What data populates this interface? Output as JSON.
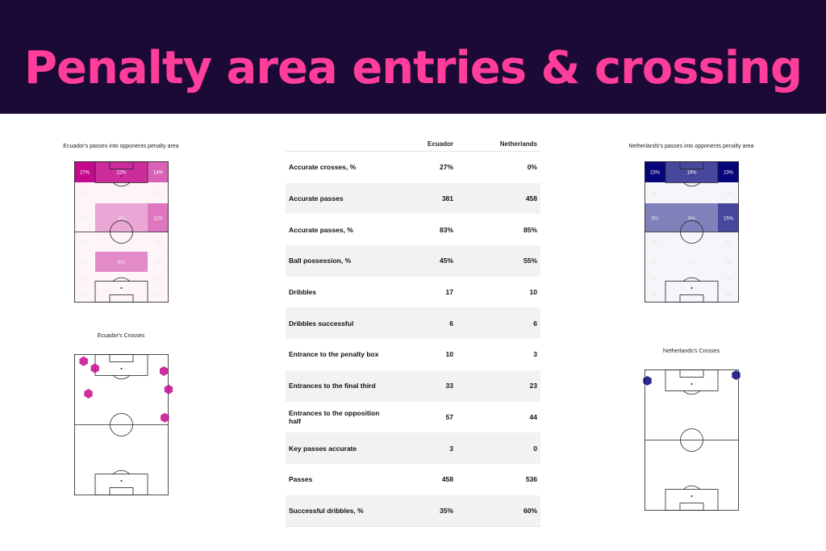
{
  "title": "Penalty area entries & crossing",
  "colors": {
    "banner_bg": "#1b0a35",
    "title": "#ff3d9a",
    "ecuador": "#c40a8c",
    "netherlands": "#06067a"
  },
  "chart_data": [
    {
      "type": "heatmap",
      "title": "Ecuador's passes into opponents penalty area",
      "team": "ecuador",
      "grid": [
        [
          "27%",
          "22%",
          "14%"
        ],
        [
          "0%",
          "",
          "0%"
        ],
        [
          "0%",
          "4%",
          "11%"
        ],
        [
          "0%",
          "",
          "0%"
        ],
        [
          "0%",
          "8%",
          "0%"
        ],
        [
          "0%",
          "",
          "0%"
        ],
        [
          "0%",
          "",
          "0%"
        ]
      ],
      "zones": [
        {
          "label": "27%",
          "value": 27
        },
        {
          "label": "22%",
          "value": 22
        },
        {
          "label": "14%",
          "value": 14
        },
        {
          "label": "4%",
          "value": 4
        },
        {
          "label": "11%",
          "value": 11
        },
        {
          "label": "8%",
          "value": 8
        },
        {
          "label": "0%",
          "value": 0
        }
      ]
    },
    {
      "type": "scatter",
      "title": "Ecuador's Crosses",
      "team": "ecuador",
      "x": [
        10,
        22,
        95,
        100,
        15,
        96
      ],
      "y": [
        95,
        90,
        88,
        75,
        72,
        55
      ]
    },
    {
      "type": "table",
      "columns": [
        "",
        "Ecuador",
        "Netherlands"
      ],
      "rows": [
        [
          "Accurate crosses, %",
          "27%",
          "0%"
        ],
        [
          "Accurate passes",
          "381",
          "458"
        ],
        [
          "Accurate passes, %",
          "83%",
          "85%"
        ],
        [
          "Ball possession, %",
          "45%",
          "55%"
        ],
        [
          "Dribbles",
          "17",
          "10"
        ],
        [
          "Dribbles successful",
          "6",
          "6"
        ],
        [
          "Entrance to the penalty box",
          "10",
          "3"
        ],
        [
          "Entrances to the final third",
          "33",
          "23"
        ],
        [
          "Entrances to the opposition half",
          "57",
          "44"
        ],
        [
          "Key passes accurate",
          "3",
          "0"
        ],
        [
          "Passes",
          "458",
          "536"
        ],
        [
          "Successful dribbles, %",
          "35%",
          "60%"
        ]
      ]
    },
    {
      "type": "heatmap",
      "title": "Netherlands's passes into opponents penalty area",
      "team": "netherlands",
      "grid": [
        [
          "23%",
          "15%",
          "23%"
        ],
        [
          "0%",
          "",
          "0%"
        ],
        [
          "8%",
          "8%",
          "15%"
        ],
        [
          "0%",
          "",
          "0%"
        ],
        [
          "0%",
          "0%",
          "0%"
        ],
        [
          "0%",
          "",
          "0%"
        ],
        [
          "0%",
          "",
          "0%"
        ]
      ],
      "zones": [
        {
          "label": "23%",
          "value": 23
        },
        {
          "label": "15%",
          "value": 15
        },
        {
          "label": "23%",
          "value": 23
        },
        {
          "label": "8%",
          "value": 8
        },
        {
          "label": "8%",
          "value": 8
        },
        {
          "label": "15%",
          "value": 15
        },
        {
          "label": "8%",
          "value": 8
        },
        {
          "label": "0%",
          "value": 0
        }
      ]
    },
    {
      "type": "scatter",
      "title": "Netherlands's Crosses",
      "team": "netherlands",
      "x": [
        3,
        97
      ],
      "y": [
        92,
        96
      ]
    }
  ]
}
